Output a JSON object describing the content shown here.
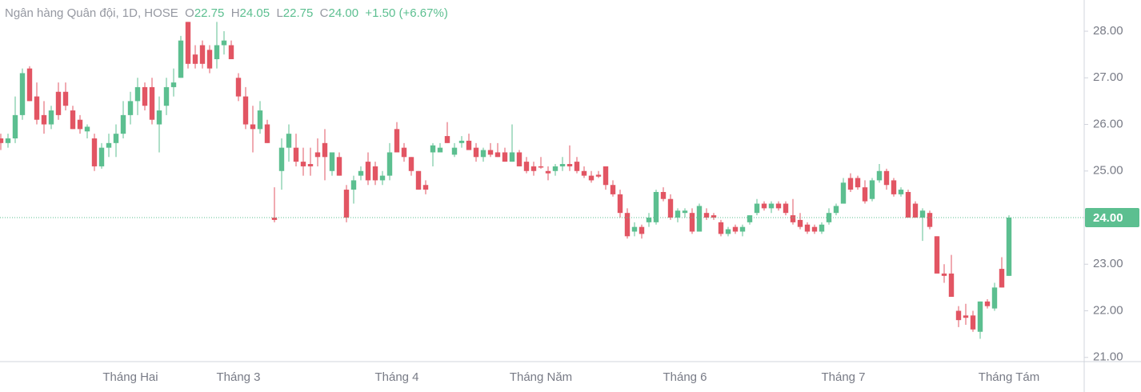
{
  "chart_data": {
    "type": "candlestick",
    "legend": {
      "title": "Ngân hàng Quân đội, 1D, HOSE",
      "o_label": "O",
      "o": "22.75",
      "h_label": "H",
      "h": "24.05",
      "l_label": "L",
      "l": "22.75",
      "c_label": "C",
      "c": "24.00",
      "change": "+1.50",
      "change_pct": "(+6.67%)"
    },
    "up_color": "#5cbf90",
    "down_color": "#e25563",
    "categories": [
      null,
      null,
      null,
      null,
      null,
      null,
      null,
      null,
      null,
      null,
      null,
      null,
      null,
      null,
      null,
      null,
      null,
      null,
      "Tháng Hai",
      null,
      null,
      null,
      null,
      null,
      null,
      null,
      null,
      null,
      null,
      null,
      null,
      null,
      null,
      "Tháng 3",
      null,
      null,
      null,
      null,
      null,
      null,
      null,
      null,
      null,
      null,
      null,
      null,
      null,
      null,
      null,
      null,
      null,
      null,
      null,
      null,
      null,
      "Tháng 4",
      null,
      null,
      null,
      null,
      null,
      null,
      null,
      null,
      null,
      null,
      null,
      null,
      null,
      null,
      null,
      null,
      null,
      null,
      null,
      "Tháng Năm",
      null,
      null,
      null,
      null,
      null,
      null,
      null,
      null,
      null,
      null,
      null,
      null,
      null,
      null,
      null,
      null,
      null,
      null,
      null,
      "Tháng 6",
      null,
      null,
      null,
      null,
      null,
      null,
      null,
      null,
      null,
      null,
      null,
      null,
      null,
      null,
      null,
      null,
      null,
      null,
      null,
      null,
      null,
      "Tháng 7",
      null,
      null,
      null,
      null,
      null,
      null,
      null,
      null,
      null,
      null,
      null,
      null,
      null,
      null,
      null,
      null,
      null,
      null,
      null,
      null,
      null,
      null,
      "Tháng Tám"
    ],
    "open": [
      25.7,
      25.6,
      25.7,
      26.2,
      27.2,
      26.6,
      26.2,
      26.0,
      26.7,
      26.7,
      26.3,
      26.1,
      25.85,
      25.7,
      25.1,
      25.5,
      25.6,
      25.8,
      26.2,
      26.5,
      26.8,
      26.8,
      26.0,
      26.4,
      26.8,
      27.0,
      28.2,
      27.5,
      27.7,
      27.6,
      27.4,
      27.7,
      27.7,
      27.0,
      26.6,
      26.0,
      25.9,
      26.0,
      24.0,
      25.0,
      25.5,
      25.5,
      25.2,
      25.15,
      25.4,
      25.6,
      25.0,
      25.3,
      24.6,
      24.6,
      24.9,
      25.2,
      25.1,
      24.8,
      24.9,
      25.9,
      25.5,
      25.3,
      25.0,
      24.7,
      25.4,
      25.4,
      25.75,
      25.35,
      25.6,
      25.65,
      25.5,
      25.3,
      25.45,
      25.4,
      25.4,
      25.2,
      25.4,
      25.2,
      25.1,
      25.1,
      25.0,
      25.0,
      25.1,
      25.15,
      25.2,
      25.0,
      24.9,
      24.92,
      25.1,
      24.7,
      24.5,
      24.1,
      23.7,
      23.8,
      23.9,
      23.9,
      24.55,
      24.4,
      24.0,
      24.1,
      24.1,
      23.7,
      24.1,
      24.05,
      23.9,
      23.65,
      23.8,
      23.7,
      23.9,
      24.1,
      24.3,
      24.2,
      24.3,
      24.3,
      24.05,
      23.95,
      23.85,
      23.8,
      23.7,
      23.9,
      24.1,
      24.3,
      24.85,
      24.85,
      24.65,
      24.4,
      24.8,
      25.0,
      24.8,
      24.5,
      24.55,
      24.3,
      24.0,
      24.1,
      23.6,
      22.8,
      22.8,
      22.0,
      21.9,
      21.9,
      21.55,
      22.2,
      22.05,
      22.9,
      22.75
    ],
    "high": [
      25.8,
      25.8,
      26.6,
      27.2,
      27.25,
      26.9,
      26.5,
      26.4,
      26.9,
      26.9,
      26.4,
      26.2,
      26.0,
      25.8,
      25.6,
      25.8,
      26.0,
      26.5,
      26.7,
      27.0,
      26.9,
      27.0,
      26.6,
      27.0,
      27.2,
      27.9,
      28.2,
      27.7,
      27.8,
      27.7,
      28.2,
      28.0,
      27.8,
      27.1,
      26.8,
      26.4,
      26.5,
      26.1,
      24.65,
      25.7,
      26.0,
      25.8,
      25.5,
      25.5,
      25.7,
      25.9,
      25.4,
      25.4,
      24.7,
      24.9,
      25.1,
      25.4,
      25.2,
      25.0,
      25.6,
      26.05,
      25.6,
      25.3,
      25.0,
      24.8,
      25.6,
      25.6,
      26.05,
      25.6,
      25.75,
      25.8,
      25.6,
      25.5,
      25.6,
      25.6,
      25.5,
      26.0,
      25.45,
      25.3,
      25.2,
      25.3,
      25.1,
      25.15,
      25.3,
      25.55,
      25.3,
      25.1,
      25.0,
      25.0,
      25.1,
      24.8,
      24.6,
      24.2,
      23.9,
      23.85,
      24.1,
      24.6,
      24.65,
      24.5,
      24.2,
      24.2,
      24.2,
      24.3,
      24.2,
      24.1,
      23.95,
      23.8,
      23.85,
      23.85,
      24.05,
      24.4,
      24.35,
      24.35,
      24.35,
      24.35,
      24.4,
      24.1,
      23.9,
      23.85,
      23.9,
      24.2,
      24.3,
      24.85,
      24.95,
      24.9,
      24.8,
      24.85,
      25.15,
      25.05,
      24.85,
      24.65,
      24.6,
      24.35,
      24.2,
      24.15,
      23.6,
      23.0,
      23.2,
      22.1,
      22.15,
      22.0,
      22.2,
      22.25,
      22.6,
      23.15,
      24.05
    ],
    "low": [
      25.45,
      25.5,
      25.6,
      26.1,
      26.5,
      26.0,
      25.8,
      25.9,
      26.1,
      26.3,
      25.9,
      25.8,
      25.7,
      25.0,
      25.05,
      25.3,
      25.3,
      25.7,
      26.0,
      26.2,
      26.3,
      26.0,
      25.4,
      26.2,
      26.6,
      27.0,
      27.2,
      27.2,
      27.2,
      27.1,
      27.2,
      27.5,
      27.4,
      26.5,
      25.9,
      25.4,
      25.8,
      25.6,
      23.9,
      24.6,
      25.2,
      25.1,
      24.9,
      24.9,
      25.1,
      24.8,
      24.9,
      24.9,
      23.9,
      24.3,
      24.8,
      24.7,
      24.7,
      24.7,
      24.8,
      25.4,
      25.2,
      24.9,
      24.6,
      24.5,
      25.1,
      25.4,
      25.6,
      25.3,
      25.5,
      25.45,
      25.2,
      25.2,
      25.3,
      25.3,
      25.2,
      25.2,
      25.1,
      24.95,
      24.9,
      25.05,
      24.8,
      24.9,
      25.0,
      25.0,
      24.95,
      24.85,
      24.75,
      24.85,
      24.6,
      24.45,
      24.0,
      23.55,
      23.6,
      23.55,
      23.8,
      23.85,
      24.35,
      23.95,
      23.9,
      24.0,
      23.65,
      23.7,
      23.95,
      23.95,
      23.6,
      23.6,
      23.65,
      23.6,
      23.85,
      24.05,
      24.15,
      24.1,
      24.15,
      24.05,
      23.85,
      23.75,
      23.65,
      23.65,
      23.65,
      23.85,
      24.05,
      24.3,
      24.55,
      24.6,
      24.3,
      24.35,
      24.75,
      24.6,
      24.45,
      24.45,
      24.0,
      24.0,
      23.5,
      23.75,
      22.8,
      22.6,
      22.3,
      21.65,
      21.7,
      21.55,
      21.4,
      22.05,
      22.0,
      22.5,
      22.75
    ],
    "close": [
      25.6,
      25.7,
      26.2,
      27.1,
      26.5,
      26.1,
      26.0,
      26.3,
      26.2,
      26.4,
      25.9,
      25.9,
      25.95,
      25.1,
      25.5,
      25.6,
      25.8,
      26.2,
      26.5,
      26.8,
      26.4,
      26.1,
      26.3,
      26.8,
      26.9,
      27.8,
      27.3,
      27.3,
      27.3,
      27.2,
      27.7,
      27.8,
      27.4,
      26.6,
      26.0,
      25.9,
      26.3,
      25.6,
      23.95,
      25.5,
      25.8,
      25.2,
      25.1,
      25.1,
      25.3,
      25.3,
      25.4,
      24.9,
      24.0,
      24.8,
      25.0,
      24.8,
      24.8,
      24.9,
      25.4,
      25.4,
      25.3,
      25.0,
      24.6,
      24.6,
      25.55,
      25.5,
      25.6,
      25.5,
      25.65,
      25.45,
      25.3,
      25.45,
      25.35,
      25.3,
      25.2,
      25.4,
      25.1,
      25.0,
      25.0,
      25.08,
      24.95,
      25.1,
      25.15,
      25.1,
      25.0,
      24.9,
      24.8,
      24.88,
      24.7,
      24.5,
      24.1,
      23.6,
      23.8,
      23.65,
      24.0,
      24.55,
      24.4,
      24.0,
      24.15,
      24.15,
      23.7,
      24.25,
      24.0,
      24.0,
      23.65,
      23.75,
      23.7,
      23.8,
      24.05,
      24.3,
      24.2,
      24.3,
      24.2,
      24.1,
      23.9,
      23.8,
      23.7,
      23.7,
      23.85,
      24.1,
      24.25,
      24.75,
      24.6,
      24.65,
      24.35,
      24.8,
      25.0,
      24.7,
      24.5,
      24.6,
      24.0,
      24.0,
      24.15,
      23.8,
      22.8,
      22.75,
      22.3,
      21.8,
      21.85,
      21.6,
      22.2,
      22.1,
      22.5,
      22.5,
      24.0
    ],
    "ylim": [
      20.91,
      28.67
    ],
    "yticks": [
      {
        "value": 21,
        "label": "21.00"
      },
      {
        "value": 22,
        "label": "22.00"
      },
      {
        "value": 23,
        "label": "23.00"
      },
      {
        "value": 24,
        "label": "24.00"
      },
      {
        "value": 25,
        "label": "25.00"
      },
      {
        "value": 26,
        "label": "26.00"
      },
      {
        "value": 27,
        "label": "27.00"
      },
      {
        "value": 28,
        "label": "28.00"
      }
    ],
    "last_price": {
      "value": 24,
      "label": "24.00"
    }
  }
}
